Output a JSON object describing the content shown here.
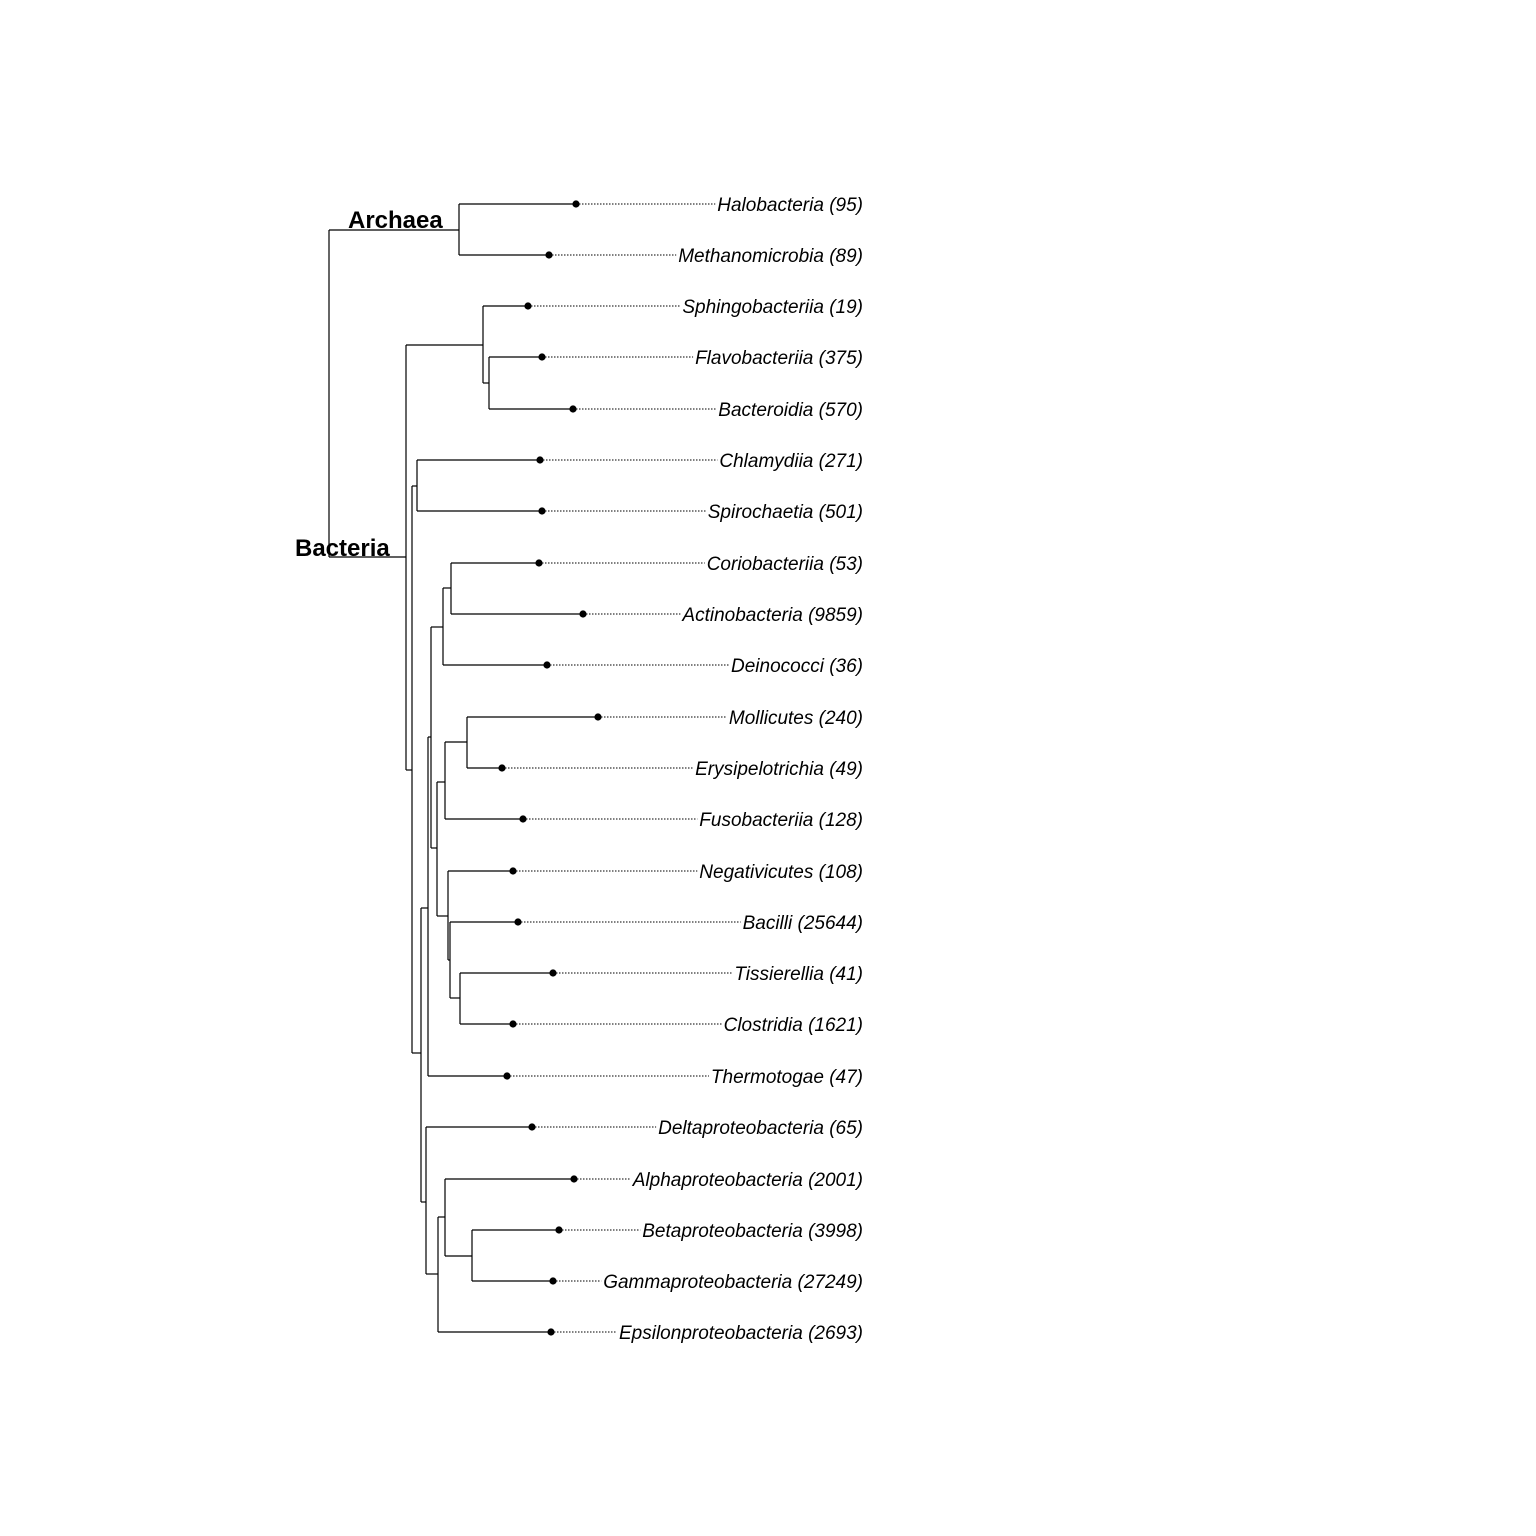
{
  "domains": {
    "archaea": "Archaea",
    "bacteria": "Bacteria"
  },
  "tips": [
    {
      "id": "halobacteria",
      "label": "Halobacteria (95)"
    },
    {
      "id": "methanomicrobia",
      "label": "Methanomicrobia (89)"
    },
    {
      "id": "sphingobacteriia",
      "label": "Sphingobacteriia (19)"
    },
    {
      "id": "flavobacteriia",
      "label": "Flavobacteriia (375)"
    },
    {
      "id": "bacteroidia",
      "label": "Bacteroidia (570)"
    },
    {
      "id": "chlamydiia",
      "label": "Chlamydiia (271)"
    },
    {
      "id": "spirochaetia",
      "label": "Spirochaetia (501)"
    },
    {
      "id": "coriobacteriia",
      "label": "Coriobacteriia (53)"
    },
    {
      "id": "actinobacteria",
      "label": "Actinobacteria (9859)"
    },
    {
      "id": "deinococci",
      "label": "Deinococci (36)"
    },
    {
      "id": "mollicutes",
      "label": "Mollicutes (240)"
    },
    {
      "id": "erysipelotrichia",
      "label": "Erysipelotrichia (49)"
    },
    {
      "id": "fusobacteriia",
      "label": "Fusobacteriia (128)"
    },
    {
      "id": "negativicutes",
      "label": "Negativicutes (108)"
    },
    {
      "id": "bacilli",
      "label": "Bacilli (25644)"
    },
    {
      "id": "tissierellia",
      "label": "Tissierellia (41)"
    },
    {
      "id": "clostridia",
      "label": "Clostridia (1621)"
    },
    {
      "id": "thermotogae",
      "label": "Thermotogae (47)"
    },
    {
      "id": "deltaproteobacteria",
      "label": "Deltaproteobacteria (65)"
    },
    {
      "id": "alphaproteobacteria",
      "label": "Alphaproteobacteria (2001)"
    },
    {
      "id": "betaproteobacteria",
      "label": "Betaproteobacteria (3998)"
    },
    {
      "id": "gammaproteobacteria",
      "label": "Gammaproteobacteria (27249)"
    },
    {
      "id": "epsilonproteobacteria",
      "label": "Epsilonproteobacteria (2693)"
    }
  ]
}
